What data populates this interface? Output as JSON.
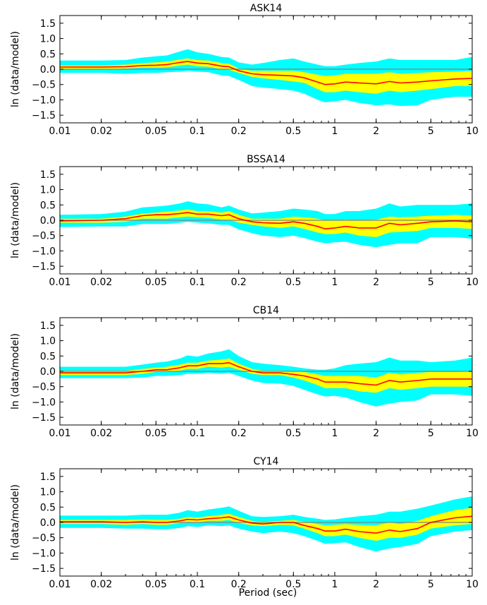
{
  "figure": {
    "xlabel": "Period (sec)",
    "colors": {
      "outer_band": "#00ffff",
      "inner_band": "#ffff00",
      "mean_line": "#ff0000",
      "zero_line": "#808080",
      "axes": "#000000"
    }
  },
  "chart_data": [
    {
      "type": "line",
      "title": "ASK14",
      "xlabel": "Period (sec)",
      "ylabel": "ln (data/model)",
      "xscale": "log",
      "xlim": [
        0.01,
        10
      ],
      "ylim": [
        -1.75,
        1.75
      ],
      "xticks": [
        0.01,
        0.02,
        0.05,
        0.1,
        0.2,
        0.5,
        1,
        2,
        5,
        10
      ],
      "xtick_labels": [
        "0.01",
        "0.02",
        "0.05",
        "0.1",
        "0.2",
        "0.5",
        "1",
        "2",
        "5",
        "10"
      ],
      "yticks": [
        -1.5,
        -1.0,
        -0.5,
        0.0,
        0.5,
        1.0,
        1.5
      ],
      "ytick_labels": [
        "−1.5",
        "−1.0",
        "−0.5",
        "0.0",
        "0.5",
        "1.0",
        "1.5"
      ],
      "x": [
        0.01,
        0.02,
        0.03,
        0.04,
        0.05,
        0.06,
        0.075,
        0.085,
        0.1,
        0.12,
        0.15,
        0.17,
        0.2,
        0.25,
        0.3,
        0.4,
        0.5,
        0.6,
        0.75,
        0.85,
        1.0,
        1.2,
        1.5,
        2.0,
        2.5,
        3.0,
        4.0,
        5.0,
        7.5,
        10.0
      ],
      "series": [
        {
          "name": "mean",
          "values": [
            0.07,
            0.07,
            0.08,
            0.12,
            0.13,
            0.15,
            0.22,
            0.25,
            0.2,
            0.18,
            0.1,
            0.08,
            -0.05,
            -0.15,
            -0.18,
            -0.2,
            -0.22,
            -0.28,
            -0.42,
            -0.5,
            -0.48,
            -0.42,
            -0.45,
            -0.48,
            -0.4,
            -0.45,
            -0.42,
            -0.38,
            -0.32,
            -0.3
          ]
        },
        {
          "name": "inner_upper",
          "values": [
            0.12,
            0.12,
            0.15,
            0.2,
            0.22,
            0.25,
            0.32,
            0.35,
            0.3,
            0.28,
            0.2,
            0.18,
            0.02,
            -0.05,
            -0.05,
            -0.05,
            -0.05,
            -0.1,
            -0.18,
            -0.22,
            -0.2,
            -0.15,
            -0.15,
            -0.15,
            -0.1,
            -0.15,
            -0.12,
            -0.1,
            -0.08,
            -0.05
          ]
        },
        {
          "name": "inner_lower",
          "values": [
            0.0,
            0.0,
            0.02,
            0.05,
            0.05,
            0.06,
            0.12,
            0.15,
            0.1,
            0.08,
            0.0,
            -0.02,
            -0.12,
            -0.25,
            -0.3,
            -0.35,
            -0.4,
            -0.45,
            -0.65,
            -0.75,
            -0.75,
            -0.7,
            -0.75,
            -0.8,
            -0.7,
            -0.75,
            -0.7,
            -0.65,
            -0.55,
            -0.55
          ]
        },
        {
          "name": "outer_upper",
          "values": [
            0.28,
            0.28,
            0.3,
            0.38,
            0.42,
            0.45,
            0.58,
            0.65,
            0.55,
            0.5,
            0.4,
            0.38,
            0.22,
            0.15,
            0.2,
            0.3,
            0.35,
            0.25,
            0.15,
            0.1,
            0.1,
            0.15,
            0.2,
            0.25,
            0.35,
            0.3,
            0.3,
            0.3,
            0.3,
            0.4
          ]
        },
        {
          "name": "outer_lower",
          "values": [
            -0.12,
            -0.12,
            -0.15,
            -0.12,
            -0.12,
            -0.1,
            -0.08,
            -0.05,
            -0.08,
            -0.1,
            -0.2,
            -0.22,
            -0.35,
            -0.55,
            -0.6,
            -0.65,
            -0.7,
            -0.8,
            -1.0,
            -1.08,
            -1.05,
            -1.0,
            -1.1,
            -1.18,
            -1.15,
            -1.2,
            -1.18,
            -1.0,
            -0.9,
            -0.9
          ]
        }
      ]
    },
    {
      "type": "line",
      "title": "BSSA14",
      "xlabel": "Period (sec)",
      "ylabel": "ln (data/model)",
      "xscale": "log",
      "xlim": [
        0.01,
        10
      ],
      "ylim": [
        -1.75,
        1.75
      ],
      "xticks": [
        0.01,
        0.02,
        0.05,
        0.1,
        0.2,
        0.5,
        1,
        2,
        5,
        10
      ],
      "xtick_labels": [
        "0.01",
        "0.02",
        "0.05",
        "0.1",
        "0.2",
        "0.5",
        "1",
        "2",
        "5",
        "10"
      ],
      "yticks": [
        -1.5,
        -1.0,
        -0.5,
        0.0,
        0.5,
        1.0,
        1.5
      ],
      "ytick_labels": [
        "−1.5",
        "−1.0",
        "−0.5",
        "0.0",
        "0.5",
        "1.0",
        "1.5"
      ],
      "x": [
        0.01,
        0.02,
        0.03,
        0.04,
        0.05,
        0.06,
        0.075,
        0.085,
        0.1,
        0.12,
        0.15,
        0.17,
        0.2,
        0.25,
        0.3,
        0.4,
        0.5,
        0.6,
        0.75,
        0.85,
        1.0,
        1.2,
        1.5,
        2.0,
        2.5,
        3.0,
        4.0,
        5.0,
        7.5,
        10.0
      ],
      "series": [
        {
          "name": "mean",
          "values": [
            -0.02,
            0.0,
            0.05,
            0.15,
            0.18,
            0.18,
            0.22,
            0.25,
            0.2,
            0.2,
            0.15,
            0.18,
            0.05,
            -0.05,
            -0.08,
            -0.1,
            -0.05,
            -0.1,
            -0.2,
            -0.28,
            -0.25,
            -0.2,
            -0.25,
            -0.25,
            -0.1,
            -0.15,
            -0.1,
            -0.05,
            -0.02,
            -0.05
          ]
        },
        {
          "name": "inner_upper",
          "values": [
            0.05,
            0.05,
            0.12,
            0.22,
            0.25,
            0.28,
            0.32,
            0.35,
            0.3,
            0.3,
            0.25,
            0.3,
            0.18,
            0.05,
            0.05,
            0.05,
            0.12,
            0.1,
            0.05,
            0.0,
            0.0,
            0.02,
            0.0,
            0.02,
            0.12,
            0.1,
            0.12,
            0.15,
            0.18,
            0.15
          ]
        },
        {
          "name": "inner_lower",
          "values": [
            -0.08,
            -0.08,
            -0.05,
            0.05,
            0.05,
            0.05,
            0.1,
            0.12,
            0.1,
            0.08,
            0.02,
            0.02,
            -0.08,
            -0.15,
            -0.2,
            -0.25,
            -0.2,
            -0.28,
            -0.4,
            -0.45,
            -0.45,
            -0.4,
            -0.5,
            -0.55,
            -0.4,
            -0.38,
            -0.35,
            -0.25,
            -0.25,
            -0.28
          ]
        },
        {
          "name": "outer_upper",
          "values": [
            0.18,
            0.2,
            0.28,
            0.42,
            0.45,
            0.48,
            0.55,
            0.62,
            0.55,
            0.52,
            0.42,
            0.48,
            0.35,
            0.22,
            0.25,
            0.3,
            0.38,
            0.35,
            0.3,
            0.2,
            0.2,
            0.3,
            0.3,
            0.38,
            0.55,
            0.45,
            0.5,
            0.5,
            0.5,
            0.55
          ]
        },
        {
          "name": "outer_lower",
          "values": [
            -0.22,
            -0.2,
            -0.2,
            -0.12,
            -0.12,
            -0.12,
            -0.08,
            -0.05,
            -0.08,
            -0.1,
            -0.15,
            -0.15,
            -0.3,
            -0.42,
            -0.5,
            -0.55,
            -0.5,
            -0.58,
            -0.7,
            -0.75,
            -0.72,
            -0.7,
            -0.8,
            -0.88,
            -0.8,
            -0.75,
            -0.75,
            -0.55,
            -0.55,
            -0.6
          ]
        }
      ]
    },
    {
      "type": "line",
      "title": "CB14",
      "xlabel": "Period (sec)",
      "ylabel": "ln (data/model)",
      "xscale": "log",
      "xlim": [
        0.01,
        10
      ],
      "ylim": [
        -1.75,
        1.75
      ],
      "xticks": [
        0.01,
        0.02,
        0.05,
        0.1,
        0.2,
        0.5,
        1,
        2,
        5,
        10
      ],
      "xtick_labels": [
        "0.01",
        "0.02",
        "0.05",
        "0.1",
        "0.2",
        "0.5",
        "1",
        "2",
        "5",
        "10"
      ],
      "yticks": [
        -1.5,
        -1.0,
        -0.5,
        0.0,
        0.5,
        1.0,
        1.5
      ],
      "ytick_labels": [
        "−1.5",
        "−1.0",
        "−0.5",
        "0.0",
        "0.5",
        "1.0",
        "1.5"
      ],
      "x": [
        0.01,
        0.02,
        0.03,
        0.04,
        0.05,
        0.06,
        0.075,
        0.085,
        0.1,
        0.12,
        0.15,
        0.17,
        0.2,
        0.25,
        0.3,
        0.4,
        0.5,
        0.6,
        0.75,
        0.85,
        1.0,
        1.2,
        1.5,
        2.0,
        2.5,
        3.0,
        4.0,
        5.0,
        7.5,
        10.0
      ],
      "series": [
        {
          "name": "mean",
          "values": [
            -0.05,
            -0.05,
            -0.05,
            0.0,
            0.05,
            0.05,
            0.12,
            0.18,
            0.18,
            0.25,
            0.25,
            0.28,
            0.15,
            0.0,
            -0.05,
            -0.05,
            -0.1,
            -0.15,
            -0.25,
            -0.35,
            -0.35,
            -0.35,
            -0.4,
            -0.45,
            -0.3,
            -0.35,
            -0.3,
            -0.25,
            -0.25,
            -0.25
          ]
        },
        {
          "name": "inner_upper",
          "values": [
            0.02,
            0.02,
            0.02,
            0.08,
            0.12,
            0.15,
            0.22,
            0.28,
            0.28,
            0.35,
            0.38,
            0.42,
            0.25,
            0.08,
            0.02,
            0.02,
            0.0,
            -0.02,
            -0.1,
            -0.15,
            -0.15,
            -0.15,
            -0.15,
            -0.2,
            -0.05,
            -0.1,
            -0.05,
            -0.02,
            -0.02,
            0.0
          ]
        },
        {
          "name": "inner_lower",
          "values": [
            -0.12,
            -0.12,
            -0.12,
            -0.08,
            -0.02,
            -0.02,
            0.02,
            0.08,
            0.08,
            0.15,
            0.12,
            0.15,
            0.05,
            -0.08,
            -0.12,
            -0.12,
            -0.2,
            -0.3,
            -0.45,
            -0.55,
            -0.55,
            -0.55,
            -0.65,
            -0.7,
            -0.55,
            -0.6,
            -0.55,
            -0.5,
            -0.5,
            -0.5
          ]
        },
        {
          "name": "outer_upper",
          "values": [
            0.15,
            0.15,
            0.15,
            0.22,
            0.28,
            0.32,
            0.42,
            0.52,
            0.48,
            0.58,
            0.65,
            0.72,
            0.5,
            0.3,
            0.25,
            0.2,
            0.15,
            0.1,
            0.05,
            0.05,
            0.1,
            0.2,
            0.25,
            0.3,
            0.45,
            0.35,
            0.35,
            0.3,
            0.35,
            0.45
          ]
        },
        {
          "name": "outer_lower",
          "values": [
            -0.22,
            -0.22,
            -0.22,
            -0.2,
            -0.15,
            -0.15,
            -0.12,
            -0.08,
            -0.08,
            -0.05,
            -0.08,
            -0.05,
            -0.15,
            -0.3,
            -0.38,
            -0.4,
            -0.48,
            -0.6,
            -0.75,
            -0.82,
            -0.8,
            -0.85,
            -1.0,
            -1.15,
            -1.05,
            -1.0,
            -0.95,
            -0.75,
            -0.75,
            -0.8
          ]
        }
      ]
    },
    {
      "type": "line",
      "title": "CY14",
      "xlabel": "Period (sec)",
      "ylabel": "ln (data/model)",
      "xscale": "log",
      "xlim": [
        0.01,
        10
      ],
      "ylim": [
        -1.75,
        1.75
      ],
      "xticks": [
        0.01,
        0.02,
        0.05,
        0.1,
        0.2,
        0.5,
        1,
        2,
        5,
        10
      ],
      "xtick_labels": [
        "0.01",
        "0.02",
        "0.05",
        "0.1",
        "0.2",
        "0.5",
        "1",
        "2",
        "5",
        "10"
      ],
      "yticks": [
        -1.5,
        -1.0,
        -0.5,
        0.0,
        0.5,
        1.0,
        1.5
      ],
      "ytick_labels": [
        "−1.5",
        "−1.0",
        "−0.5",
        "0.0",
        "0.5",
        "1.0",
        "1.5"
      ],
      "x": [
        0.01,
        0.02,
        0.03,
        0.04,
        0.05,
        0.06,
        0.075,
        0.085,
        0.1,
        0.12,
        0.15,
        0.17,
        0.2,
        0.25,
        0.3,
        0.4,
        0.5,
        0.6,
        0.75,
        0.85,
        1.0,
        1.2,
        1.5,
        2.0,
        2.5,
        3.0,
        4.0,
        5.0,
        7.5,
        10.0
      ],
      "series": [
        {
          "name": "mean",
          "values": [
            0.02,
            0.02,
            0.0,
            0.02,
            0.0,
            0.0,
            0.05,
            0.1,
            0.08,
            0.12,
            0.15,
            0.18,
            0.08,
            -0.02,
            -0.05,
            0.0,
            0.0,
            -0.1,
            -0.2,
            -0.28,
            -0.28,
            -0.22,
            -0.3,
            -0.35,
            -0.25,
            -0.3,
            -0.2,
            0.0,
            0.15,
            0.2
          ]
        },
        {
          "name": "inner_upper",
          "values": [
            0.08,
            0.08,
            0.08,
            0.1,
            0.08,
            0.08,
            0.12,
            0.18,
            0.16,
            0.2,
            0.25,
            0.28,
            0.18,
            0.05,
            0.02,
            0.05,
            0.08,
            0.02,
            -0.05,
            -0.1,
            -0.08,
            -0.05,
            -0.08,
            -0.1,
            0.0,
            -0.05,
            0.05,
            0.2,
            0.4,
            0.48
          ]
        },
        {
          "name": "inner_lower",
          "values": [
            -0.05,
            -0.05,
            -0.08,
            -0.05,
            -0.08,
            -0.08,
            -0.02,
            0.02,
            0.0,
            0.05,
            0.05,
            0.08,
            -0.02,
            -0.1,
            -0.12,
            -0.08,
            -0.1,
            -0.2,
            -0.35,
            -0.45,
            -0.45,
            -0.4,
            -0.5,
            -0.6,
            -0.5,
            -0.5,
            -0.4,
            -0.2,
            -0.1,
            -0.05
          ]
        },
        {
          "name": "outer_upper",
          "values": [
            0.22,
            0.22,
            0.22,
            0.25,
            0.25,
            0.25,
            0.32,
            0.4,
            0.35,
            0.42,
            0.48,
            0.52,
            0.38,
            0.2,
            0.18,
            0.2,
            0.25,
            0.18,
            0.12,
            0.08,
            0.1,
            0.15,
            0.2,
            0.25,
            0.35,
            0.35,
            0.45,
            0.55,
            0.75,
            0.85
          ]
        },
        {
          "name": "outer_lower",
          "values": [
            -0.18,
            -0.18,
            -0.2,
            -0.2,
            -0.22,
            -0.22,
            -0.18,
            -0.12,
            -0.15,
            -0.1,
            -0.12,
            -0.1,
            -0.2,
            -0.3,
            -0.35,
            -0.3,
            -0.35,
            -0.45,
            -0.6,
            -0.7,
            -0.68,
            -0.65,
            -0.8,
            -0.95,
            -0.85,
            -0.8,
            -0.7,
            -0.45,
            -0.3,
            -0.25
          ]
        }
      ]
    }
  ]
}
